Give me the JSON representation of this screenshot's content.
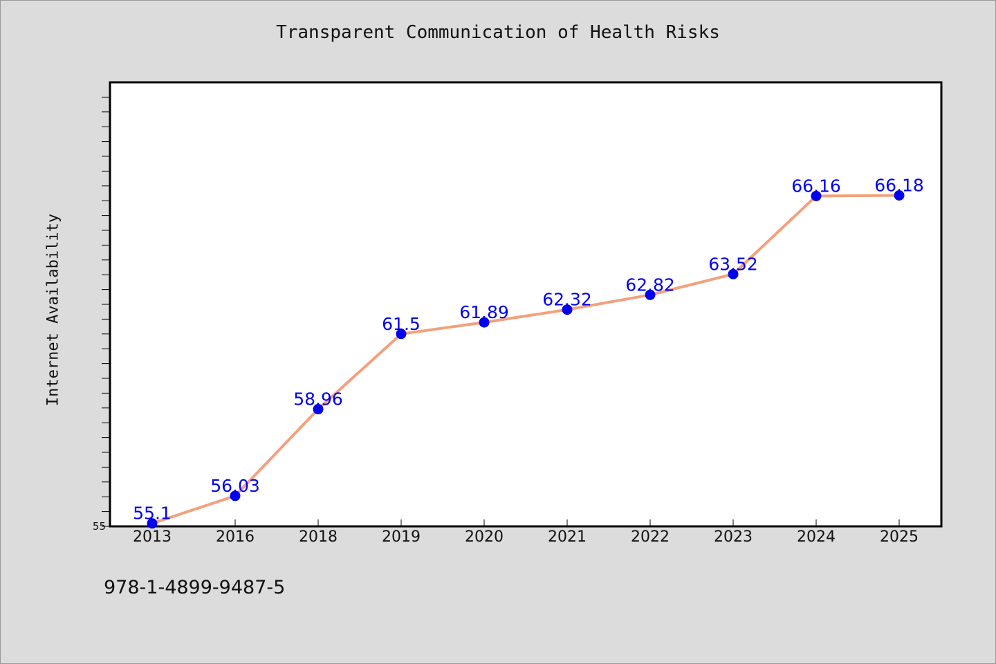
{
  "chart_data": {
    "type": "line",
    "title": "Transparent Communication of Health Risks",
    "ylabel": "Internet Availability",
    "xlabel": "",
    "categories": [
      "2013",
      "2016",
      "2018",
      "2019",
      "2020",
      "2021",
      "2022",
      "2023",
      "2024",
      "2025"
    ],
    "series": [
      {
        "values": [
          55.1,
          56.03,
          58.96,
          61.5,
          61.89,
          62.32,
          62.82,
          63.52,
          66.16,
          66.18
        ],
        "labels": [
          "55.1",
          "56.03",
          "58.96",
          "61.5",
          "61.89",
          "62.32",
          "62.82",
          "63.52",
          "66.16",
          "66.18"
        ],
        "line_color": "#f4a07c",
        "marker_color": "#0000ee",
        "label_color": "#0000ee"
      }
    ],
    "ylim": [
      55,
      70
    ],
    "y_tick_labels": [
      "55"
    ],
    "grid": false,
    "legend": "none",
    "plot_background": "#ffffff",
    "page_background": "#dcdcdc"
  },
  "footer": {
    "isbn": "978-1-4899-9487-5"
  }
}
